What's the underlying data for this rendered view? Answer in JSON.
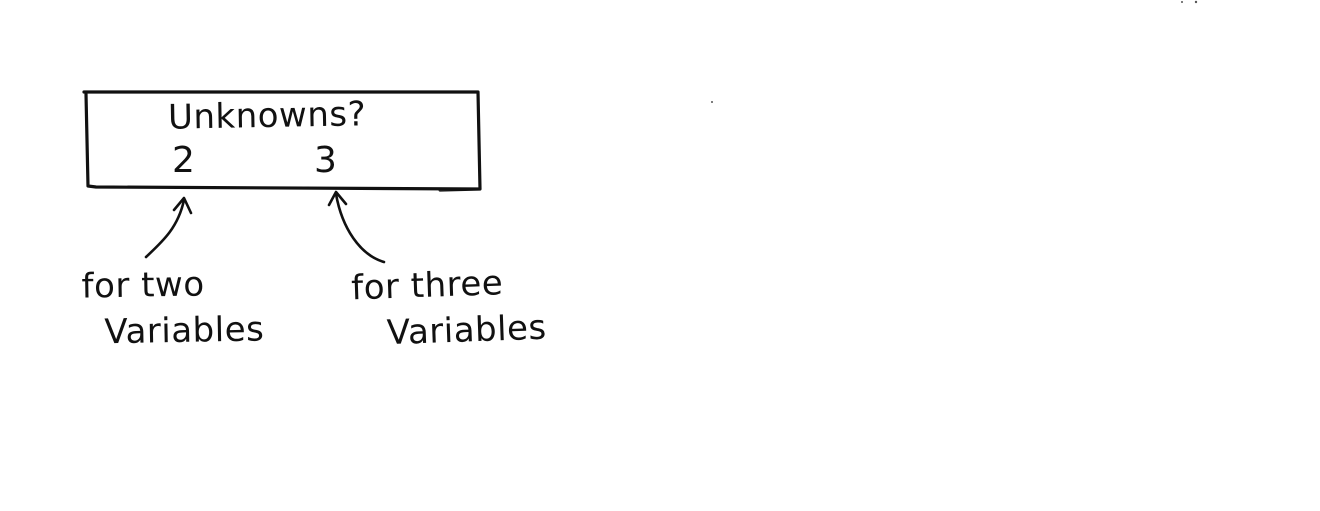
{
  "diagram": {
    "box": {
      "title": "Unknowns?",
      "value_left": "2",
      "value_right": "3"
    },
    "annotations": {
      "left": {
        "line1": "for two",
        "line2": "Variables"
      },
      "right": {
        "line1": "for three",
        "line2": "Variables"
      }
    }
  }
}
